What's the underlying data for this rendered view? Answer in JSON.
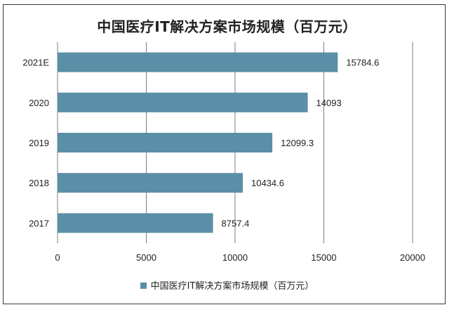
{
  "chart_data": {
    "type": "bar",
    "orientation": "horizontal",
    "title": "中国医疗IT解决方案市场规模（百万元）",
    "categories": [
      "2021E",
      "2020",
      "2019",
      "2018",
      "2017"
    ],
    "series": [
      {
        "name": "中国医疗IT解决方案市场规模（百万元）",
        "values": [
          15784.6,
          14093,
          12099.3,
          10434.6,
          8757.4
        ],
        "value_labels": [
          "15784.6",
          "14093",
          "12099.3",
          "10434.6",
          "8757.4"
        ]
      }
    ],
    "xlim": [
      0,
      20000
    ],
    "xticks": [
      0,
      5000,
      10000,
      15000,
      20000
    ],
    "xtick_labels": [
      "0",
      "5000",
      "10000",
      "15000",
      "20000"
    ],
    "grid": "vertical",
    "legend": "bottom-center",
    "bar_color": "#5b8fa8"
  }
}
